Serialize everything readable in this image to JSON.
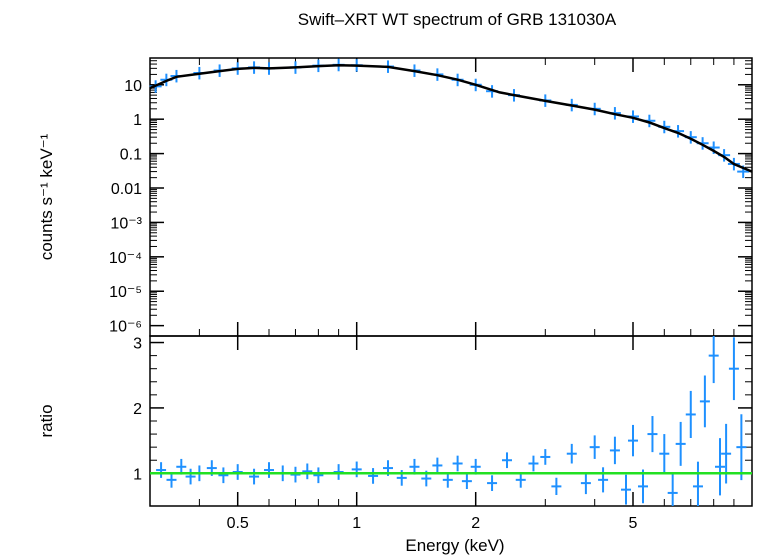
{
  "chart_data": [
    {
      "type": "scatter",
      "panel": "top",
      "title": "Swift–XRT WT spectrum of GRB 131030A",
      "xlabel": "",
      "ylabel": "counts s⁻¹ keV⁻¹",
      "xscale": "log",
      "yscale": "log",
      "xlim": [
        0.3,
        10
      ],
      "ylim": [
        5e-07,
        60
      ],
      "xticks": [
        0.5,
        1,
        2,
        5
      ],
      "yticks": [
        {
          "value": 10,
          "label": "10"
        },
        {
          "value": 1,
          "label": "1"
        },
        {
          "value": 0.1,
          "label": "0.1"
        },
        {
          "value": 0.01,
          "label": "0.01"
        },
        {
          "value": 0.001,
          "label": "10⁻³"
        },
        {
          "value": 0.0001,
          "label": "10⁻⁴"
        },
        {
          "value": 1e-05,
          "label": "10⁻⁵"
        },
        {
          "value": 1e-06,
          "label": "10⁻⁶"
        }
      ],
      "series": [
        {
          "role": "data",
          "color": "#1e90ff",
          "x": [
            0.31,
            0.33,
            0.35,
            0.4,
            0.45,
            0.5,
            0.55,
            0.6,
            0.7,
            0.8,
            0.9,
            1.0,
            1.2,
            1.4,
            1.6,
            1.8,
            2.0,
            2.2,
            2.5,
            3.0,
            3.5,
            4.0,
            4.5,
            5.0,
            5.5,
            6.0,
            6.5,
            7.0,
            7.5,
            8.0,
            8.5,
            9.0,
            9.5
          ],
          "y": [
            9.0,
            14.0,
            18.0,
            22.0,
            26.0,
            30.0,
            32.0,
            30.0,
            32.0,
            36.0,
            38.0,
            37.0,
            34.0,
            26.0,
            20.0,
            14.0,
            10.0,
            6.5,
            5.0,
            3.5,
            2.6,
            2.0,
            1.5,
            1.2,
            0.9,
            0.6,
            0.45,
            0.3,
            0.2,
            0.15,
            0.09,
            0.05,
            0.03
          ]
        },
        {
          "role": "model",
          "color": "#000000",
          "x": [
            0.3,
            0.33,
            0.35,
            0.4,
            0.45,
            0.5,
            0.55,
            0.6,
            0.7,
            0.8,
            0.9,
            1.0,
            1.2,
            1.4,
            1.6,
            1.8,
            2.0,
            2.3,
            2.5,
            3.0,
            3.5,
            4.0,
            4.5,
            5.0,
            5.5,
            6.0,
            6.5,
            7.0,
            7.5,
            8.0,
            8.5,
            9.0,
            10.0
          ],
          "y": [
            8.0,
            13.0,
            17.0,
            21.0,
            25.0,
            29.0,
            31.0,
            30.0,
            32.0,
            35.0,
            37.0,
            36.0,
            33.0,
            25.0,
            19.0,
            14.0,
            10.0,
            6.0,
            5.0,
            3.4,
            2.5,
            1.9,
            1.4,
            1.1,
            0.8,
            0.55,
            0.4,
            0.27,
            0.18,
            0.12,
            0.08,
            0.05,
            0.03
          ]
        }
      ]
    },
    {
      "type": "scatter",
      "panel": "bottom",
      "xlabel": "Energy (keV)",
      "ylabel": "ratio",
      "xscale": "log",
      "yscale": "linear",
      "xlim": [
        0.3,
        10
      ],
      "ylim": [
        0.5,
        3.1
      ],
      "xticks": [
        0.5,
        1,
        2,
        5
      ],
      "yticks": [
        1,
        2,
        3
      ],
      "reference_line": {
        "y": 1,
        "color": "#22e022"
      },
      "series": [
        {
          "role": "ratio",
          "color": "#1e90ff",
          "x": [
            0.32,
            0.34,
            0.36,
            0.38,
            0.4,
            0.43,
            0.46,
            0.5,
            0.55,
            0.6,
            0.65,
            0.7,
            0.75,
            0.8,
            0.9,
            1.0,
            1.1,
            1.2,
            1.3,
            1.4,
            1.5,
            1.6,
            1.7,
            1.8,
            1.9,
            2.0,
            2.2,
            2.4,
            2.6,
            2.8,
            3.0,
            3.2,
            3.5,
            3.8,
            4.0,
            4.2,
            4.5,
            4.8,
            5.0,
            5.3,
            5.6,
            6.0,
            6.3,
            6.6,
            7.0,
            7.3,
            7.6,
            8.0,
            8.3,
            8.6,
            9.0,
            9.4
          ],
          "y": [
            1.05,
            0.9,
            1.1,
            0.95,
            1.0,
            1.08,
            0.97,
            1.02,
            0.95,
            1.05,
            1.0,
            0.98,
            1.03,
            0.97,
            1.02,
            1.06,
            0.96,
            1.08,
            0.93,
            1.1,
            0.92,
            1.12,
            0.9,
            1.15,
            0.88,
            1.1,
            0.85,
            1.2,
            0.9,
            1.15,
            1.25,
            0.8,
            1.3,
            0.85,
            1.4,
            0.9,
            1.35,
            0.75,
            1.5,
            0.8,
            1.6,
            1.3,
            0.7,
            1.45,
            1.9,
            0.8,
            2.1,
            2.8,
            1.1,
            1.3,
            2.6,
            1.4
          ]
        }
      ]
    }
  ]
}
